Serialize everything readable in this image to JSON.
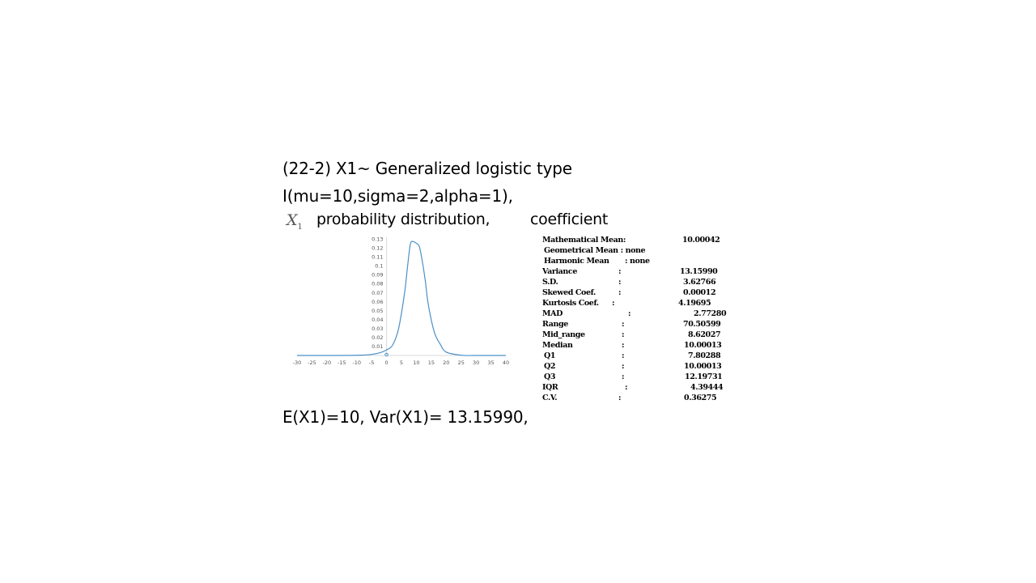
{
  "title_line1": "(22-2) X1~ Generalized logistic type",
  "title_line2": "I(mu=10,sigma=2,alpha=1),",
  "var_symbol": "X",
  "var_subscript": "1",
  "prob_label": "probability distribution,",
  "coef_label": "coefficient",
  "footer": "E(X1)=10, Var(X1)= 13.15990,",
  "chart_data": {
    "type": "line",
    "title": "",
    "xlabel": "",
    "ylabel": "",
    "xlim": [
      -30,
      40
    ],
    "ylim": [
      0,
      0.13
    ],
    "x_ticks": [
      -30,
      -25,
      -20,
      -15,
      -10,
      -5,
      0,
      5,
      10,
      15,
      20,
      25,
      30,
      35,
      40
    ],
    "y_ticks": [
      0.01,
      0.02,
      0.03,
      0.04,
      0.05,
      0.06,
      0.07,
      0.08,
      0.09,
      0.1,
      0.11,
      0.12,
      0.13
    ],
    "grid": false,
    "legend": "none",
    "line_color": "#4a90c8",
    "series": [
      {
        "x": [
          -30,
          -20,
          -10,
          -5,
          -2,
          0,
          2,
          4,
          6,
          7,
          8,
          9,
          10,
          11,
          12,
          13,
          14,
          16,
          18,
          20,
          25,
          30,
          40
        ],
        "y": [
          0,
          0,
          0.0002,
          0.0012,
          0.0032,
          0.0062,
          0.0114,
          0.0293,
          0.0686,
          0.0979,
          0.1242,
          0.1269,
          0.125,
          0.1213,
          0.1049,
          0.0831,
          0.0568,
          0.0262,
          0.0126,
          0.0038,
          0.0003,
          0,
          0
        ]
      }
    ]
  },
  "stats": [
    {
      "label": "Mathematical Mean:",
      "sep": "",
      "value": "10.00042"
    },
    {
      "label": "Geometrical Mean : none",
      "sep": "",
      "value": ""
    },
    {
      "label": "Harmonic Mean",
      "sep": ": none",
      "value": ""
    },
    {
      "label": "Variance",
      "sep": ":",
      "value": "13.15990"
    },
    {
      "label": "S.D.",
      "sep": ":",
      "value": "3.62766"
    },
    {
      "label": "Skewed Coef.",
      "sep": ":",
      "value": "0.00012"
    },
    {
      "label": "Kurtosis Coef.",
      "sep": ":",
      "value": "4.19695"
    },
    {
      "label": "MAD",
      "sep": ":",
      "value": "2.77280"
    },
    {
      "label": "Range",
      "sep": ":",
      "value": "70.50599"
    },
    {
      "label": "Mid_range",
      "sep": ":",
      "value": "8.62027"
    },
    {
      "label": "Median",
      "sep": ":",
      "value": "10.00013"
    },
    {
      "label": "Q1",
      "sep": ":",
      "value": "7.80288"
    },
    {
      "label": "Q2",
      "sep": ":",
      "value": "10.00013"
    },
    {
      "label": "Q3",
      "sep": ":",
      "value": "12.19731"
    },
    {
      "label": "IQR",
      "sep": ":",
      "value": "4.39444"
    },
    {
      "label": "C.V.",
      "sep": ":",
      "value": "0.36275"
    }
  ]
}
